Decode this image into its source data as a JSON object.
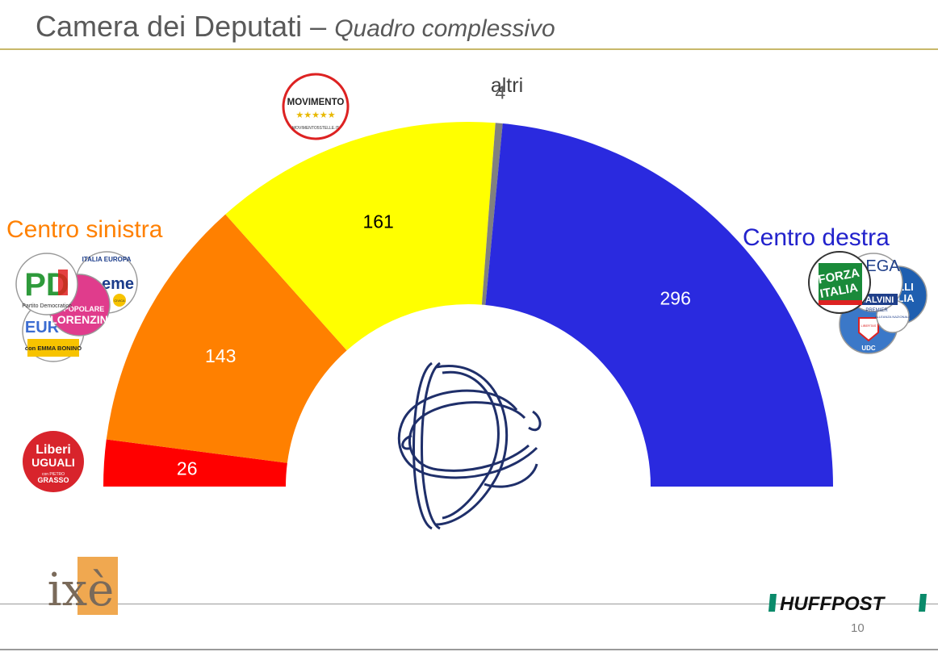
{
  "header": {
    "title": "Camera dei Deputati –",
    "subtitle": "Quadro complessivo"
  },
  "chart_data": {
    "type": "pie",
    "subtype": "hemicycle",
    "total": 630,
    "segments": [
      {
        "label": "",
        "value": 26,
        "color": "#ff0000",
        "text_color": "#ffffff"
      },
      {
        "label": "",
        "value": 143,
        "color": "#ff8000",
        "text_color": "#ffffff"
      },
      {
        "label": "",
        "value": 161,
        "color": "#ffff00",
        "text_color": "#000000"
      },
      {
        "label": "altri",
        "value": 4,
        "color": "#808080",
        "text_color": "#595959"
      },
      {
        "label": "",
        "value": 296,
        "color": "#2a2adf",
        "text_color": "#ffffff"
      }
    ],
    "annotations": [
      {
        "text": "Centro sinistra",
        "color": "#ff8000"
      },
      {
        "text": "Centro destra",
        "color": "#2222cc"
      }
    ]
  },
  "logos": {
    "m5s": {
      "text": "MOVIMENTO",
      "sub": "MOVIMENTO5STELLE.IT"
    },
    "pd": {
      "text": "PD",
      "sub": "Partito Democratico"
    },
    "italia_europa": {
      "text": "ITALIA EUROPA",
      "main": "eme",
      "civica": "CIVICA"
    },
    "popolare": {
      "text": "POPOLARE",
      "main": "LORENZIN"
    },
    "piu_europa": {
      "text": "EUR",
      "sub": "con EMMA BONINO"
    },
    "leu": {
      "line1": "Liberi",
      "line2": "UGUALI",
      "line3": "con PIETRO",
      "line4": "GRASSO"
    },
    "forza_italia": {
      "line1": "FORZA",
      "line2": "ITALIA"
    },
    "lega": {
      "line1": "LEGA",
      "line2": "SALVINI",
      "line3": "PREMIER"
    },
    "fdi": {
      "line1": "LLI",
      "line2": "LIA"
    },
    "noi_italia": {
      "text": "ALLEANZA NAZIONALE"
    },
    "udc": {
      "text": "LIBERTAS",
      "sub": "UDC"
    },
    "ixe": {
      "text": "ixè"
    },
    "huffpost": {
      "text": "HUFFPOST"
    }
  },
  "page": {
    "number": "10"
  }
}
